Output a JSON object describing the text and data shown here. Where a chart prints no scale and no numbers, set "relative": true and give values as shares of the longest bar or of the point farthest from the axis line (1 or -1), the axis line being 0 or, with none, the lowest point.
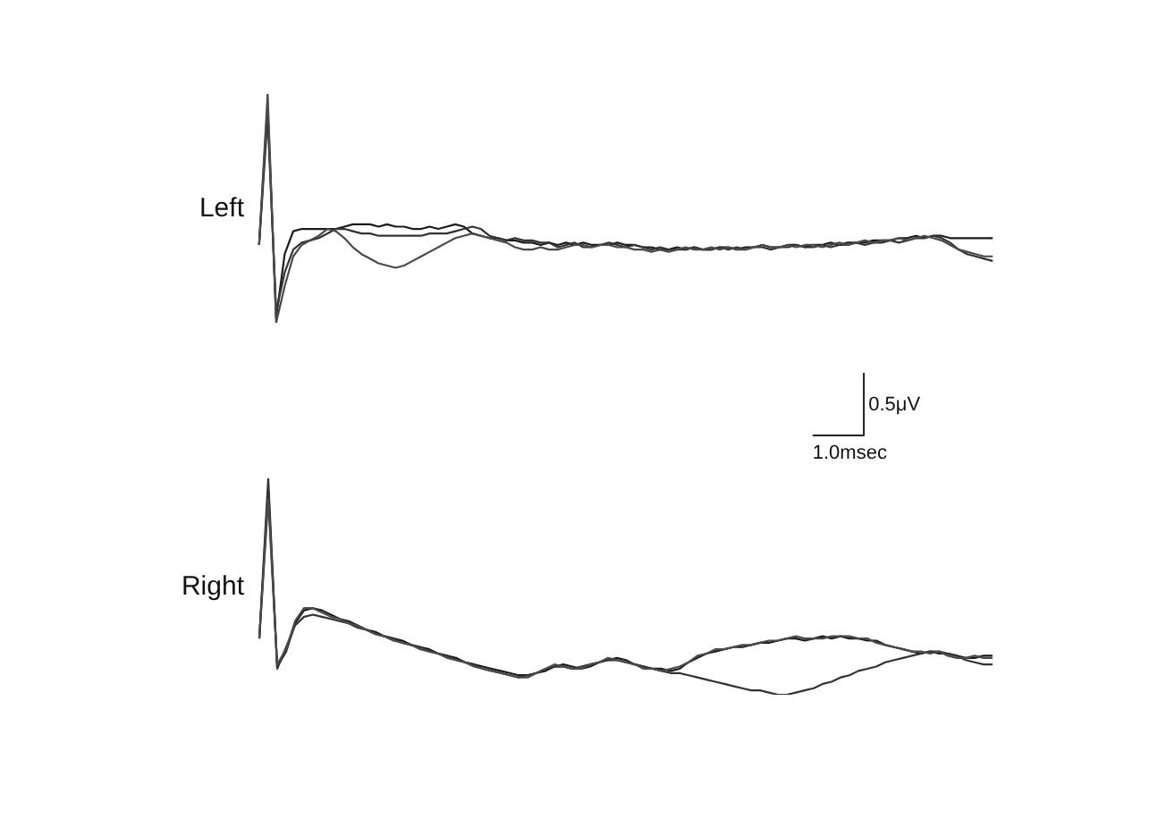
{
  "chart_data": [
    {
      "type": "line",
      "relative": true,
      "ylabel": "Left",
      "annotations": [
        "0.5μV",
        "1.0msec"
      ],
      "categories": [
        null,
        null,
        null,
        null,
        null,
        null,
        null,
        null,
        null,
        null,
        null,
        null,
        null,
        null,
        null,
        null,
        null,
        null,
        null,
        null,
        null,
        null,
        null,
        null,
        null,
        null,
        null,
        null,
        null,
        null,
        null,
        null,
        null,
        null,
        null,
        null,
        null,
        null,
        null,
        null,
        null,
        null,
        null,
        null,
        null,
        null,
        null,
        null,
        null,
        null,
        null,
        null,
        null,
        null,
        null,
        null,
        null,
        null,
        null,
        null,
        null,
        null,
        null,
        null,
        null,
        null,
        null,
        null,
        null,
        null,
        null,
        null,
        null,
        null,
        null,
        null,
        null,
        null,
        null,
        null,
        null,
        null,
        null,
        null,
        null,
        null,
        null
      ],
      "series": [
        {
          "color": "#1a1a1a",
          "values": [
            0.34,
            0.95,
            0.02,
            0.3,
            0.4,
            0.41,
            0.41,
            0.41,
            0.41,
            0.41,
            0.42,
            0.43,
            0.43,
            0.43,
            0.42,
            0.43,
            0.42,
            0.42,
            0.41,
            0.41,
            0.42,
            0.41,
            0.42,
            0.43,
            0.42,
            0.39,
            0.38,
            0.37,
            0.37,
            0.36,
            0.36,
            0.35,
            0.35,
            0.34,
            0.35,
            0.34,
            0.35,
            0.34,
            0.35,
            0.34,
            0.34,
            0.34,
            0.35,
            0.34,
            0.34,
            0.33,
            0.33,
            0.32,
            0.32,
            0.33,
            0.32,
            0.33,
            0.32,
            0.32,
            0.33,
            0.33,
            0.32,
            0.33,
            0.33,
            0.34,
            0.33,
            0.33,
            0.34,
            0.34,
            0.33,
            0.34,
            0.34,
            0.35,
            0.34,
            0.35,
            0.35,
            0.35,
            0.36,
            0.36,
            0.36,
            0.37,
            0.37,
            0.38,
            0.37,
            0.38,
            0.38,
            0.37,
            0.37,
            0.37,
            0.37,
            0.37,
            0.37
          ]
        },
        {
          "color": "#333333",
          "values": [
            0.34,
            0.9,
            0.05,
            0.22,
            0.32,
            0.35,
            0.36,
            0.37,
            0.39,
            0.41,
            0.41,
            0.4,
            0.39,
            0.39,
            0.38,
            0.38,
            0.38,
            0.38,
            0.38,
            0.38,
            0.39,
            0.39,
            0.39,
            0.4,
            0.41,
            0.42,
            0.41,
            0.38,
            0.37,
            0.36,
            0.37,
            0.36,
            0.36,
            0.35,
            0.35,
            0.33,
            0.34,
            0.35,
            0.33,
            0.33,
            0.34,
            0.35,
            0.34,
            0.33,
            0.34,
            0.33,
            0.32,
            0.33,
            0.32,
            0.32,
            0.32,
            0.33,
            0.32,
            0.32,
            0.33,
            0.32,
            0.33,
            0.32,
            0.33,
            0.33,
            0.32,
            0.33,
            0.33,
            0.34,
            0.33,
            0.33,
            0.34,
            0.33,
            0.34,
            0.34,
            0.35,
            0.34,
            0.35,
            0.35,
            0.36,
            0.35,
            0.36,
            0.37,
            0.37,
            0.38,
            0.37,
            0.35,
            0.32,
            0.3,
            0.29,
            0.28,
            0.27
          ]
        },
        {
          "color": "#4a4a4a",
          "values": [
            0.34,
            1.0,
            0.0,
            0.16,
            0.29,
            0.34,
            0.36,
            0.38,
            0.41,
            0.4,
            0.37,
            0.33,
            0.3,
            0.28,
            0.26,
            0.25,
            0.24,
            0.25,
            0.27,
            0.29,
            0.31,
            0.33,
            0.35,
            0.37,
            0.38,
            0.39,
            0.38,
            0.37,
            0.36,
            0.35,
            0.33,
            0.32,
            0.32,
            0.33,
            0.32,
            0.32,
            0.33,
            0.34,
            0.34,
            0.33,
            0.34,
            0.34,
            0.33,
            0.33,
            0.32,
            0.32,
            0.31,
            0.32,
            0.31,
            0.32,
            0.33,
            0.32,
            0.32,
            0.33,
            0.32,
            0.33,
            0.32,
            0.32,
            0.33,
            0.34,
            0.33,
            0.33,
            0.34,
            0.33,
            0.34,
            0.34,
            0.33,
            0.34,
            0.35,
            0.34,
            0.35,
            0.36,
            0.35,
            0.36,
            0.36,
            0.37,
            0.36,
            0.37,
            0.38,
            0.37,
            0.36,
            0.34,
            0.32,
            0.31,
            0.3,
            0.29,
            0.29
          ]
        }
      ]
    },
    {
      "type": "line",
      "relative": true,
      "ylabel": "Right",
      "categories": [
        null,
        null,
        null,
        null,
        null,
        null,
        null,
        null,
        null,
        null,
        null,
        null,
        null,
        null,
        null,
        null,
        null,
        null,
        null,
        null,
        null,
        null,
        null,
        null,
        null,
        null,
        null,
        null,
        null,
        null,
        null,
        null,
        null,
        null,
        null,
        null,
        null,
        null,
        null,
        null,
        null,
        null,
        null,
        null,
        null,
        null,
        null,
        null,
        null,
        null,
        null,
        null,
        null,
        null,
        null,
        null,
        null,
        null,
        null,
        null,
        null,
        null,
        null,
        null,
        null,
        null,
        null,
        null,
        null,
        null,
        null,
        null,
        null,
        null,
        null,
        null,
        null,
        null,
        null,
        null,
        null,
        null,
        null
      ],
      "series": [
        {
          "color": "#1a1a1a",
          "values": [
            0.26,
            0.95,
            0.13,
            0.2,
            0.33,
            0.39,
            0.4,
            0.39,
            0.37,
            0.35,
            0.34,
            0.32,
            0.3,
            0.29,
            0.27,
            0.26,
            0.25,
            0.23,
            0.22,
            0.21,
            0.19,
            0.18,
            0.17,
            0.15,
            0.14,
            0.13,
            0.12,
            0.11,
            0.1,
            0.09,
            0.09,
            0.1,
            0.11,
            0.13,
            0.14,
            0.13,
            0.12,
            0.13,
            0.15,
            0.16,
            0.17,
            0.16,
            0.14,
            0.13,
            0.12,
            0.12,
            0.11,
            0.12,
            0.15,
            0.17,
            0.19,
            0.2,
            0.21,
            0.22,
            0.22,
            0.23,
            0.24,
            0.24,
            0.25,
            0.26,
            0.26,
            0.25,
            0.26,
            0.27,
            0.26,
            0.27,
            0.26,
            0.26,
            0.25,
            0.25,
            0.23,
            0.22,
            0.21,
            0.2,
            0.19,
            0.2,
            0.19,
            0.19,
            0.18,
            0.17,
            0.17,
            0.18,
            0.18
          ]
        },
        {
          "color": "#333333",
          "values": [
            0.26,
            1.0,
            0.12,
            0.22,
            0.32,
            0.36,
            0.37,
            0.36,
            0.35,
            0.34,
            0.33,
            0.31,
            0.3,
            0.28,
            0.27,
            0.26,
            0.24,
            0.23,
            0.22,
            0.2,
            0.19,
            0.18,
            0.16,
            0.15,
            0.14,
            0.12,
            0.11,
            0.1,
            0.09,
            0.08,
            0.09,
            0.1,
            0.12,
            0.13,
            0.13,
            0.12,
            0.13,
            0.14,
            0.15,
            0.16,
            0.16,
            0.15,
            0.14,
            0.13,
            0.12,
            0.11,
            0.1,
            0.1,
            0.09,
            0.08,
            0.07,
            0.06,
            0.05,
            0.04,
            0.03,
            0.02,
            0.02,
            0.01,
            0.0,
            0.0,
            0.01,
            0.02,
            0.03,
            0.05,
            0.06,
            0.08,
            0.09,
            0.11,
            0.12,
            0.13,
            0.15,
            0.16,
            0.17,
            0.18,
            0.19,
            0.2,
            0.2,
            0.19,
            0.18,
            0.16,
            0.15,
            0.14,
            0.14
          ]
        },
        {
          "color": "#4a4a4a",
          "values": [
            0.26,
            0.9,
            0.14,
            0.21,
            0.34,
            0.4,
            0.4,
            0.38,
            0.36,
            0.35,
            0.33,
            0.32,
            0.3,
            0.28,
            0.27,
            0.25,
            0.24,
            0.23,
            0.21,
            0.2,
            0.19,
            0.17,
            0.16,
            0.15,
            0.13,
            0.12,
            0.11,
            0.1,
            0.09,
            0.08,
            0.08,
            0.1,
            0.12,
            0.14,
            0.13,
            0.12,
            0.12,
            0.14,
            0.15,
            0.17,
            0.16,
            0.15,
            0.14,
            0.12,
            0.12,
            0.11,
            0.12,
            0.13,
            0.15,
            0.18,
            0.19,
            0.21,
            0.21,
            0.22,
            0.23,
            0.23,
            0.24,
            0.25,
            0.25,
            0.26,
            0.27,
            0.26,
            0.26,
            0.26,
            0.27,
            0.27,
            0.27,
            0.26,
            0.26,
            0.24,
            0.23,
            0.22,
            0.21,
            0.2,
            0.2,
            0.19,
            0.2,
            0.18,
            0.17,
            0.17,
            0.18,
            0.17,
            0.17
          ]
        }
      ]
    }
  ]
}
